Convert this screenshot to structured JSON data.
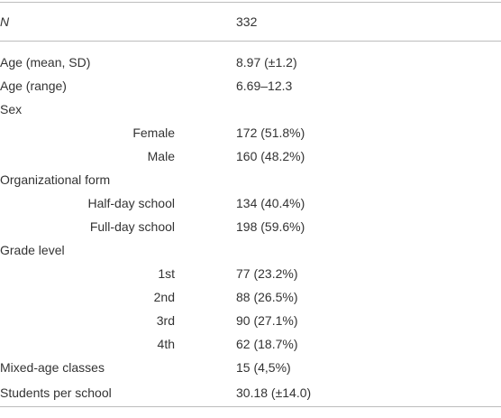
{
  "table": {
    "header": [
      "N",
      "332"
    ],
    "rows": [
      [
        "Age (mean, SD)",
        "8.97 (±1.2)"
      ],
      [
        "Age (range)",
        "6.69–12.3"
      ],
      [
        "Sex"
      ],
      [
        "Female",
        "172 (51.8%)"
      ],
      [
        "Male",
        "160 (48.2%)"
      ],
      [
        "Organizational form"
      ],
      [
        "Half-day school",
        "134 (40.4%)"
      ],
      [
        "Full-day school",
        "198 (59.6%)"
      ],
      [
        "Grade level"
      ],
      [
        "1st",
        "77 (23.2%)"
      ],
      [
        "2nd",
        "88 (26.5%)"
      ],
      [
        "3rd",
        "90 (27.1%)"
      ],
      [
        "4th",
        "62 (18.7%)"
      ],
      [
        "Mixed-age classes",
        "15 (4,5%)"
      ],
      [
        "Students per school",
        "30.18 (±14.0)"
      ]
    ]
  }
}
